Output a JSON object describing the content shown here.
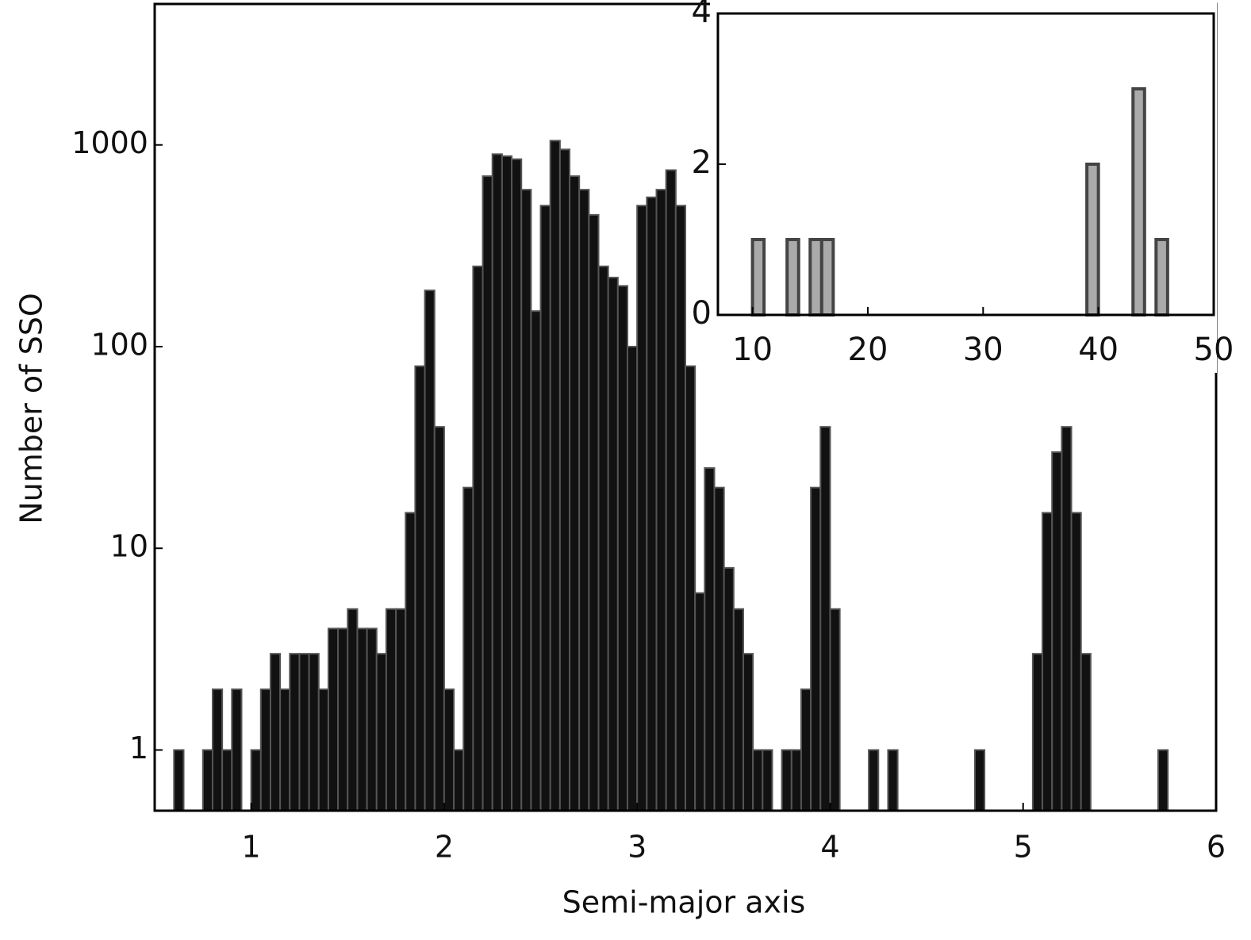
{
  "chart_data": [
    {
      "type": "histogram",
      "xlabel": "Semi-major axis",
      "ylabel": "Number of SSO",
      "color": "#111111",
      "edgecolor": "#555555",
      "yscale": "log",
      "xlim": [
        0.5,
        6
      ],
      "ylim": [
        0.5,
        5000
      ],
      "xticks": [
        1,
        2,
        3,
        4,
        5,
        6
      ],
      "yticks": [
        1,
        10,
        100,
        1000
      ],
      "bins": [
        0.6,
        0.65,
        0.7,
        0.75,
        0.8,
        0.85,
        0.9,
        0.95,
        1.0,
        1.05,
        1.1,
        1.15,
        1.2,
        1.25,
        1.3,
        1.35,
        1.4,
        1.45,
        1.5,
        1.55,
        1.6,
        1.65,
        1.7,
        1.75,
        1.8,
        1.85,
        1.9,
        1.95,
        2.0,
        2.05,
        2.1,
        2.15,
        2.2,
        2.25,
        2.3,
        2.35,
        2.4,
        2.45,
        2.5,
        2.55,
        2.6,
        2.65,
        2.7,
        2.75,
        2.8,
        2.85,
        2.9,
        2.95,
        3.0,
        3.05,
        3.1,
        3.15,
        3.2,
        3.25,
        3.3,
        3.35,
        3.4,
        3.45,
        3.5,
        3.55,
        3.6,
        3.65,
        3.7,
        3.75,
        3.8,
        3.85,
        3.9,
        3.95,
        4.0,
        4.05,
        4.1,
        4.15,
        4.2,
        4.25,
        4.3,
        4.35,
        4.4,
        4.45,
        4.5,
        4.55,
        4.6,
        4.65,
        4.7,
        4.75,
        4.8,
        4.85,
        4.9,
        4.95,
        5.0,
        5.05,
        5.1,
        5.15,
        5.2,
        5.25,
        5.3,
        5.35,
        5.4,
        5.45,
        5.5,
        5.55,
        5.6,
        5.65,
        5.7,
        5.75,
        5.8
      ],
      "counts": [
        1,
        0,
        0,
        1,
        2,
        1,
        2,
        0,
        1,
        2,
        3,
        2,
        3,
        3,
        3,
        2,
        4,
        4,
        5,
        4,
        4,
        3,
        5,
        5,
        15,
        80,
        190,
        40,
        2,
        1,
        20,
        250,
        700,
        900,
        880,
        850,
        600,
        150,
        500,
        1050,
        950,
        700,
        600,
        450,
        250,
        220,
        200,
        100,
        500,
        550,
        600,
        750,
        500,
        80,
        6,
        25,
        20,
        8,
        5,
        3,
        1,
        1,
        0,
        1,
        1,
        2,
        20,
        40,
        5,
        0,
        0,
        0,
        1,
        0,
        1,
        0,
        0,
        0,
        0,
        0,
        0,
        0,
        0,
        1,
        0,
        0,
        0,
        0,
        0,
        3,
        15,
        30,
        40,
        15,
        3,
        0,
        0,
        0,
        0,
        0,
        0,
        0,
        1,
        0
      ]
    },
    {
      "type": "histogram",
      "color": "#aaaaaa",
      "edgecolor": "#444444",
      "xlim": [
        7,
        50
      ],
      "ylim": [
        0,
        4
      ],
      "xticks": [
        10,
        20,
        30,
        40,
        50
      ],
      "yticks": [
        0,
        2,
        4
      ],
      "bins": [
        7,
        8,
        9,
        10,
        11,
        12,
        13,
        14,
        15,
        16,
        17,
        18,
        19,
        20,
        21,
        22,
        23,
        24,
        25,
        26,
        27,
        28,
        29,
        30,
        31,
        32,
        33,
        34,
        35,
        36,
        37,
        38,
        39,
        40,
        41,
        42,
        43,
        44,
        45,
        46,
        47,
        48,
        49,
        50
      ],
      "counts": [
        0,
        0,
        0,
        1,
        0,
        0,
        1,
        0,
        1,
        1,
        0,
        0,
        0,
        0,
        0,
        0,
        0,
        0,
        0,
        0,
        0,
        0,
        0,
        0,
        0,
        0,
        0,
        0,
        0,
        0,
        0,
        0,
        2,
        0,
        0,
        0,
        3,
        0,
        1,
        0,
        0,
        0,
        0
      ]
    }
  ]
}
